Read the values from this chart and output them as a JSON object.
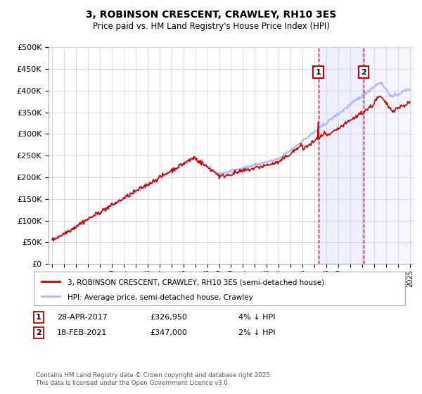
{
  "title": "3, ROBINSON CRESCENT, CRAWLEY, RH10 3ES",
  "subtitle": "Price paid vs. HM Land Registry's House Price Index (HPI)",
  "legend_line1": "3, ROBINSON CRESCENT, CRAWLEY, RH10 3ES (semi-detached house)",
  "legend_line2": "HPI: Average price, semi-detached house, Crawley",
  "annotation1_label": "1",
  "annotation1_date": "28-APR-2017",
  "annotation1_price": "£326,950",
  "annotation1_hpi": "4% ↓ HPI",
  "annotation2_label": "2",
  "annotation2_date": "18-FEB-2021",
  "annotation2_price": "£347,000",
  "annotation2_hpi": "2% ↓ HPI",
  "footnote": "Contains HM Land Registry data © Crown copyright and database right 2025.\nThis data is licensed under the Open Government Licence v3.0.",
  "ylim_min": 0,
  "ylim_max": 500000,
  "ytick_step": 50000,
  "hpi_line_color": "#b0b8ff",
  "price_line_color": "#cc0000",
  "vline_color": "#cc0000",
  "vline_style": "--",
  "background_color": "#ffffff",
  "grid_color": "#cccccc",
  "annotation_box_color": "#cc0000",
  "annotation_shade_color": "#c8d0ff",
  "year_start": 1995,
  "year_end": 2025,
  "sale1_year": 2017.32,
  "sale2_year": 2021.12,
  "sale1_value": 326950,
  "sale2_value": 347000
}
